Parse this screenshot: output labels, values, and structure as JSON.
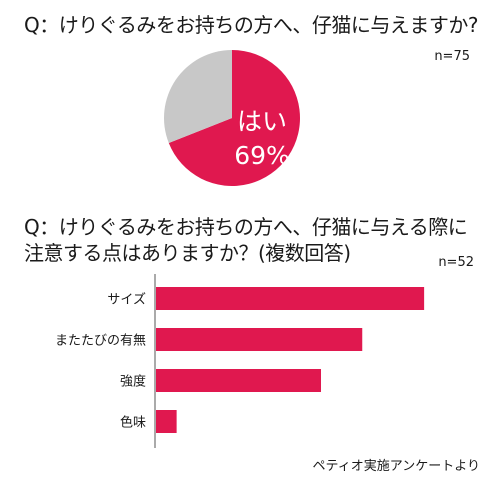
{
  "question1": {
    "title": "Q：けりぐるみをお持ちの方へ、仔猫に与えますか?",
    "n": "n=75"
  },
  "question2": {
    "title_line1": "Q：けりぐるみをお持ちの方へ、仔猫に与える際に",
    "title_line2": "注意する点はありますか？(複数回答)",
    "n": "n=52"
  },
  "source": "ペティオ実施アンケートより",
  "colors": {
    "accent": "#e0184f",
    "gray": "#c8c8c8",
    "axis": "#555555"
  },
  "chart_data": [
    {
      "type": "pie",
      "categories": [
        "はい",
        ""
      ],
      "values": [
        69,
        31
      ],
      "labels": {
        "answer": "はい",
        "percent": "69%"
      }
    },
    {
      "type": "bar",
      "orientation": "horizontal",
      "categories": [
        "サイズ",
        "またたびの有無",
        "強度",
        "色味"
      ],
      "values": [
        39,
        30,
        24,
        3
      ],
      "xlim": [
        0,
        40
      ]
    }
  ]
}
